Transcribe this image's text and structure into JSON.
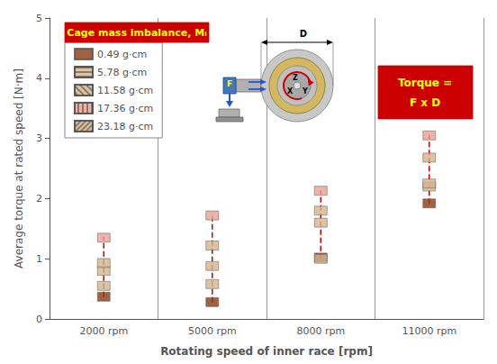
{
  "chart_data": {
    "type": "scatter",
    "xlabel": "Rotating speed of inner race [rpm]",
    "ylabel": "Average torque at rated speed [N·m]",
    "categories": [
      "2000 rpm",
      "5000 rpm",
      "8000 rpm",
      "11000 rpm"
    ],
    "ylim": [
      0,
      5
    ],
    "yticks": [
      0,
      1,
      2,
      3,
      4,
      5
    ],
    "grid": "x",
    "legend": "upper left",
    "marker": "square",
    "line_style": "dashed",
    "series": [
      {
        "name": "0.49 g·cm",
        "color": "#8B3A10",
        "values": [
          0.37,
          0.28,
          1.02,
          1.92
        ]
      },
      {
        "name": "5.78 g·cm",
        "color": "#D2B48C",
        "values": [
          0.55,
          0.58,
          1.0,
          2.2
        ]
      },
      {
        "name": "11.58 g·cm",
        "color": "#D2B48C",
        "values": [
          0.8,
          0.88,
          1.6,
          2.25
        ]
      },
      {
        "name": "17.36 g·cm",
        "color": "#E8A090",
        "values": [
          1.35,
          1.72,
          2.13,
          3.05
        ]
      },
      {
        "name": "23.18 g·cm",
        "color": "#D2B48C",
        "values": [
          0.93,
          1.22,
          1.8,
          2.68
        ]
      }
    ],
    "annotations": [
      "Cage mass imbalance, Mᵢ",
      "Torque =",
      "F x D",
      "X",
      "Y",
      "Z",
      "D",
      "F"
    ]
  }
}
